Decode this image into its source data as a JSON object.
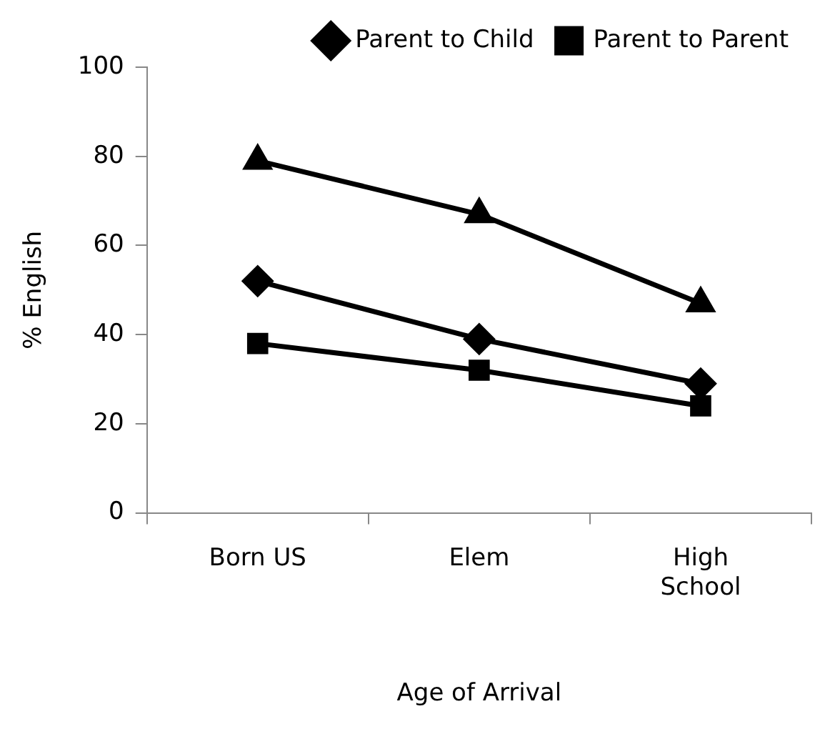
{
  "chart_data": {
    "type": "line",
    "xlabel": "Age of Arrival",
    "ylabel": "% English",
    "categories": [
      "Born US",
      "Elem",
      "High School"
    ],
    "series": [
      {
        "name": "Parent to Child",
        "color": "#000000",
        "marker": "diamond",
        "values": [
          52,
          39,
          29
        ]
      },
      {
        "name": "Parent to Parent",
        "color": "#000000",
        "marker": "square",
        "values": [
          38,
          32,
          24
        ]
      },
      {
        "color": "#000000",
        "marker": "triangle",
        "values": [
          79,
          67,
          47
        ]
      }
    ],
    "ylim": [
      0,
      100
    ],
    "yticks": [
      0,
      20,
      40,
      60,
      80,
      100
    ],
    "grid": false,
    "legend": "top right",
    "line_style": "solid"
  }
}
